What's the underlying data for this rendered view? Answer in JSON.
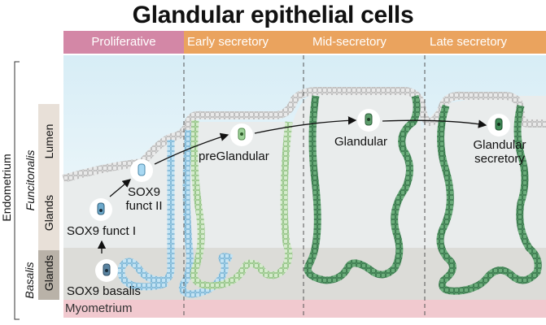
{
  "title": "Glandular epithelial cells",
  "phases": [
    "Proliferative",
    "Early secretory",
    "Mid-secretory",
    "Late secretory"
  ],
  "side_labels": {
    "endometrium": "Endometrium",
    "functionalis": "Funcitonalis",
    "basalis": "Basalis",
    "lumen": "Lumen",
    "glands_upper": "Glands",
    "glands_lower": "Glands"
  },
  "cell_labels": {
    "sox9_basalis": "SOX9 basalis",
    "sox9_funct_1": "SOX9 funct I",
    "sox9_funct_2_line1": "SOX9",
    "sox9_funct_2_line2": "funct II",
    "preglandular": "preGlandular",
    "glandular": "Glandular",
    "glandular_secretory_line1": "Glandular",
    "glandular_secretory_line2": "secretory"
  },
  "myometrium": "Myometrium",
  "colors": {
    "proliferative": "#d387a6",
    "secretory": "#eaa35e",
    "myometrium": "#f1c9cf",
    "basalis_bg": "#dcdcd8",
    "lumen_bg": "#e9f4f8",
    "sidebar": "#e8e0d8",
    "sidebar_dark": "#b9b2a8",
    "sox9_cell": "#8cc6e6",
    "pre_cell": "#9fd39a",
    "glandular_cell": "#3f8a56"
  }
}
